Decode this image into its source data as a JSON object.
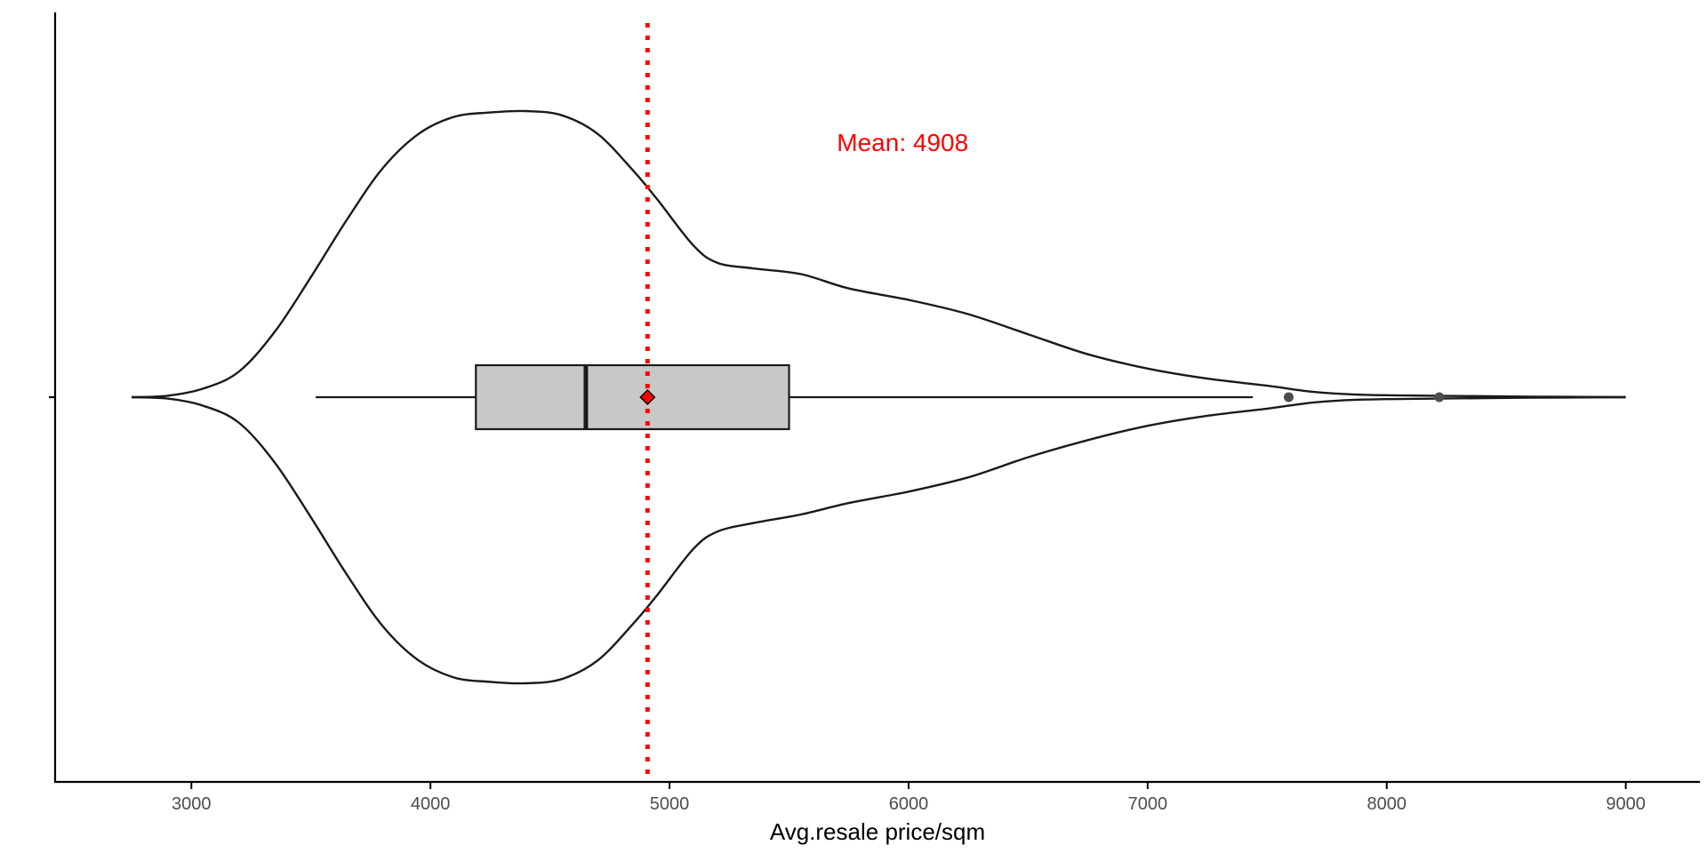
{
  "chart_data": {
    "type": "violin",
    "xlabel": "Avg.resale price/sqm",
    "ylabel": "",
    "title": "",
    "xlim": [
      2430,
      9310
    ],
    "x_ticks": [
      3000,
      4000,
      5000,
      6000,
      7000,
      8000,
      9000
    ],
    "grid": false,
    "legend": "none",
    "violin": {
      "min": 2750,
      "max": 9000,
      "upper_profile": [
        [
          2750,
          0.0
        ],
        [
          2900,
          0.005
        ],
        [
          3050,
          0.03
        ],
        [
          3200,
          0.09
        ],
        [
          3350,
          0.23
        ],
        [
          3500,
          0.42
        ],
        [
          3650,
          0.62
        ],
        [
          3800,
          0.8
        ],
        [
          3950,
          0.92
        ],
        [
          4100,
          0.98
        ],
        [
          4250,
          0.995
        ],
        [
          4400,
          1.0
        ],
        [
          4550,
          0.985
        ],
        [
          4700,
          0.92
        ],
        [
          4850,
          0.79
        ],
        [
          4950,
          0.69
        ],
        [
          5100,
          0.53
        ],
        [
          5200,
          0.47
        ],
        [
          5350,
          0.45
        ],
        [
          5550,
          0.43
        ],
        [
          5750,
          0.38
        ],
        [
          6000,
          0.34
        ],
        [
          6250,
          0.29
        ],
        [
          6500,
          0.22
        ],
        [
          6750,
          0.15
        ],
        [
          7000,
          0.1
        ],
        [
          7250,
          0.065
        ],
        [
          7500,
          0.04
        ],
        [
          7700,
          0.018
        ],
        [
          7900,
          0.0085
        ],
        [
          8200,
          0.005
        ],
        [
          8600,
          0.002
        ],
        [
          9000,
          0.0
        ]
      ],
      "lower_profile": [
        [
          2750,
          0.0
        ],
        [
          2900,
          0.005
        ],
        [
          3050,
          0.03
        ],
        [
          3200,
          0.09
        ],
        [
          3350,
          0.23
        ],
        [
          3500,
          0.42
        ],
        [
          3650,
          0.62
        ],
        [
          3800,
          0.8
        ],
        [
          3950,
          0.92
        ],
        [
          4100,
          0.98
        ],
        [
          4250,
          0.995
        ],
        [
          4400,
          1.0
        ],
        [
          4550,
          0.985
        ],
        [
          4700,
          0.92
        ],
        [
          4850,
          0.79
        ],
        [
          4950,
          0.69
        ],
        [
          5100,
          0.53
        ],
        [
          5200,
          0.47
        ],
        [
          5350,
          0.44
        ],
        [
          5550,
          0.41
        ],
        [
          5750,
          0.37
        ],
        [
          6000,
          0.33
        ],
        [
          6250,
          0.28
        ],
        [
          6500,
          0.21
        ],
        [
          6750,
          0.15
        ],
        [
          7000,
          0.1
        ],
        [
          7250,
          0.065
        ],
        [
          7500,
          0.04
        ],
        [
          7700,
          0.018
        ],
        [
          7900,
          0.0085
        ],
        [
          8200,
          0.005
        ],
        [
          8600,
          0.002
        ],
        [
          9000,
          0.0
        ]
      ]
    },
    "boxplot": {
      "whisker_low": 3520,
      "q1": 4190,
      "median": 4650,
      "q3": 5500,
      "whisker_high": 7440,
      "outliers": [
        7590,
        8220
      ]
    },
    "mean": {
      "value": 4908,
      "label": "Mean: 4908",
      "line_color": "#ff0000",
      "line_style": "dotted",
      "marker": "diamond",
      "marker_color": "#ff0000"
    },
    "colors": {
      "box_fill": "#c8c8c8",
      "outline": "#1a1a1a",
      "outlier": "#4d4d4d",
      "axis": "#000000"
    }
  }
}
